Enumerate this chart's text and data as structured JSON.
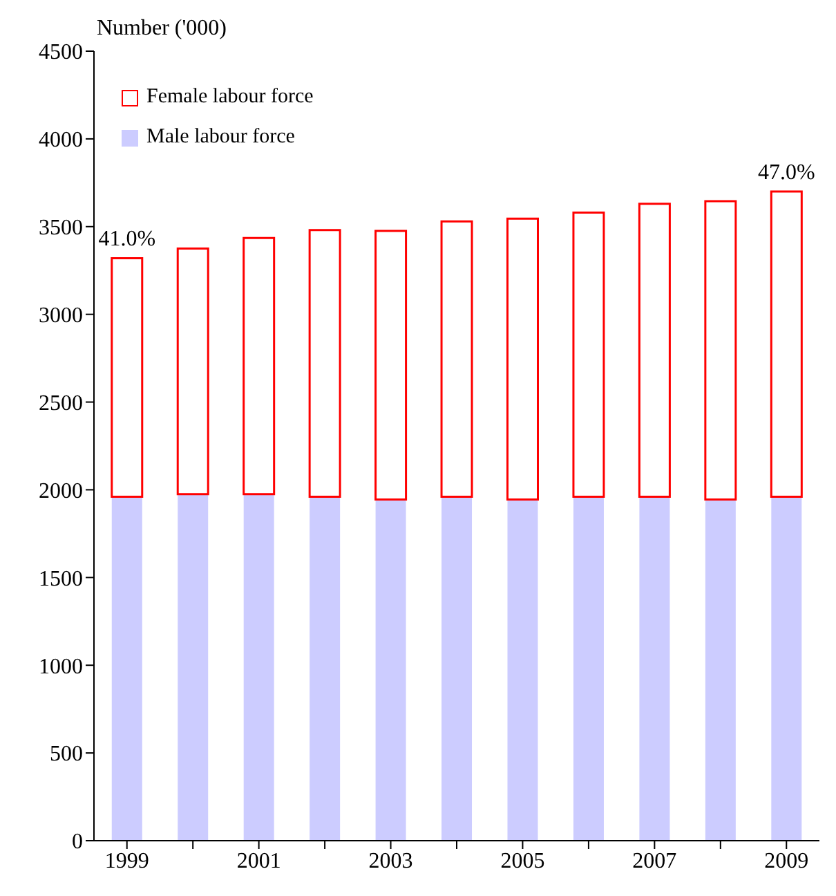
{
  "chart_data": {
    "type": "bar",
    "stacked": true,
    "ylabel": "Number ('000)",
    "categories": [
      "1999",
      null,
      "2001",
      null,
      "2003",
      null,
      "2005",
      null,
      "2007",
      null,
      "2009"
    ],
    "series": [
      {
        "name": "Male labour force",
        "color": "#ccccff",
        "values": [
          1960,
          1975,
          1975,
          1960,
          1945,
          1960,
          1945,
          1960,
          1960,
          1945,
          1960
        ]
      },
      {
        "name": "Female labour force",
        "color": "#ff0000",
        "values": [
          1360,
          1400,
          1460,
          1520,
          1530,
          1570,
          1600,
          1620,
          1670,
          1700,
          1740
        ]
      }
    ],
    "ylim": [
      0,
      4500
    ],
    "yticks": [
      0,
      500,
      1000,
      1500,
      2000,
      2500,
      3000,
      3500,
      4000,
      4500
    ],
    "annotations": [
      {
        "text": "41.0%",
        "x": "1999",
        "y": 3320
      },
      {
        "text": "47.0%",
        "x": "2009",
        "y": 3700
      }
    ],
    "legend": "top left",
    "grid": false
  }
}
